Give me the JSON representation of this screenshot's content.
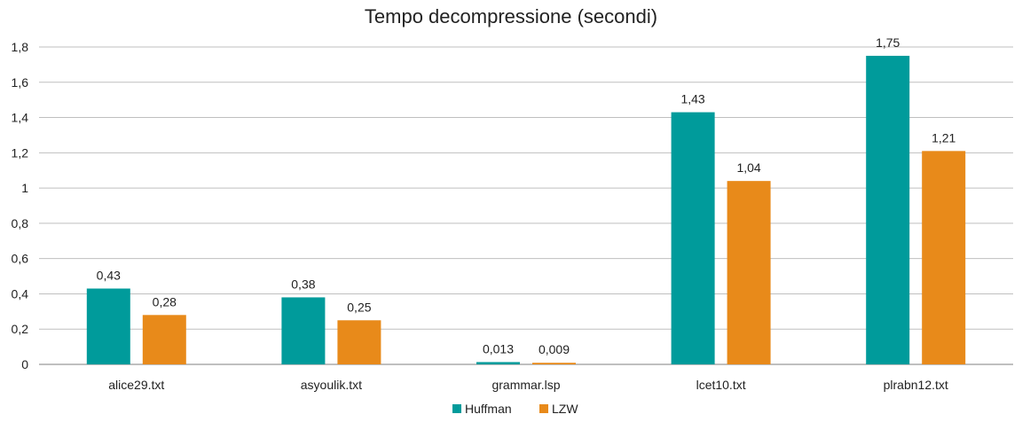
{
  "chart_data": {
    "type": "bar",
    "title": "Tempo decompressione (secondi)",
    "xlabel": "",
    "ylabel": "",
    "categories": [
      "alice29.txt",
      "asyoulik.txt",
      "grammar.lsp",
      "lcet10.txt",
      "plrabn12.txt"
    ],
    "series": [
      {
        "name": "Huffman",
        "color": "#009b9b",
        "values": [
          0.43,
          0.38,
          0.013,
          1.43,
          1.75
        ],
        "labels": [
          "0,43",
          "0,38",
          "0,013",
          "1,43",
          "1,75"
        ]
      },
      {
        "name": "LZW",
        "color": "#e88a1a",
        "values": [
          0.28,
          0.25,
          0.009,
          1.04,
          1.21
        ],
        "labels": [
          "0,28",
          "0,25",
          "0,009",
          "1,04",
          "1,21"
        ]
      }
    ],
    "ylim": [
      0,
      1.8
    ],
    "yticks": [
      0,
      0.2,
      0.4,
      0.6,
      0.8,
      1,
      1.2,
      1.4,
      1.6,
      1.8
    ],
    "ytick_labels": [
      "0",
      "0,2",
      "0,4",
      "0,6",
      "0,8",
      "1",
      "1,2",
      "1,4",
      "1,6",
      "1,8"
    ],
    "grid": true,
    "legend_position": "bottom"
  }
}
